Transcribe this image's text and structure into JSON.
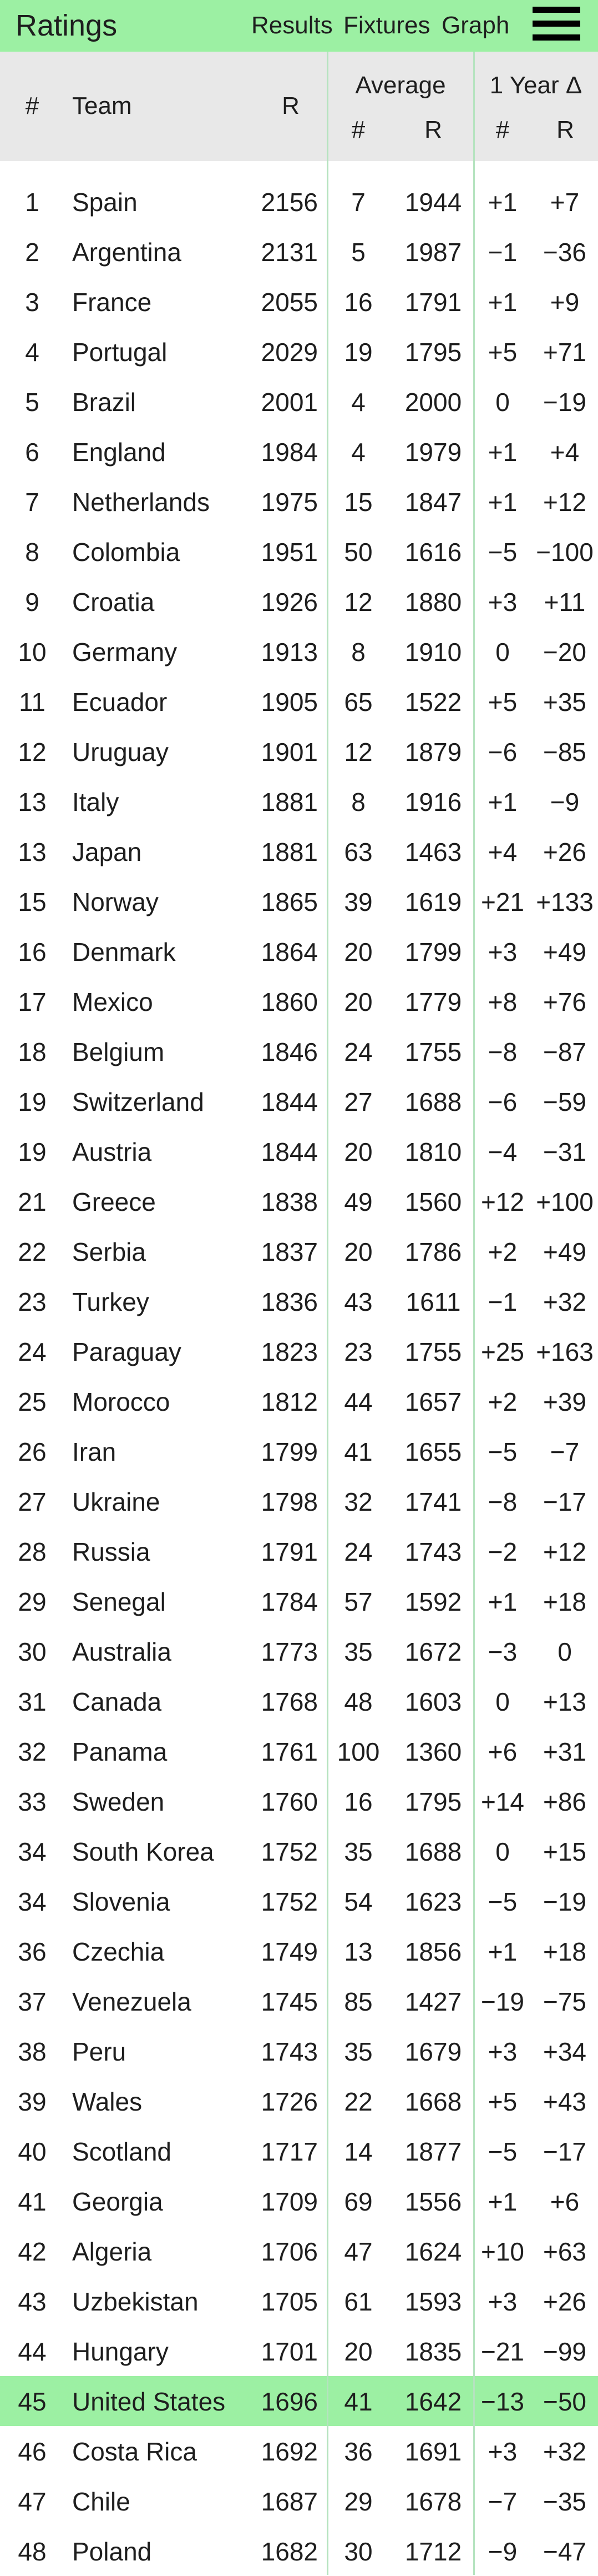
{
  "header": {
    "title": "Ratings",
    "nav": [
      "Results",
      "Fixtures",
      "Graph"
    ],
    "menu_icon": "hamburger-menu-icon",
    "background_color": "#9cf0a3"
  },
  "table_header": {
    "rank": "#",
    "team": "Team",
    "rating": "R",
    "average": "Average",
    "average_rank": "#",
    "average_rating": "R",
    "one_year": "1 Year Δ",
    "one_year_rank": "#",
    "one_year_rating": "R"
  },
  "highlight_color": "#9cf0a3",
  "rows": [
    {
      "rank": "1",
      "team": "Spain",
      "r": "2156",
      "avg_rank": "7",
      "avg_r": "1944",
      "d_rank": "+1",
      "d_r": "+7"
    },
    {
      "rank": "2",
      "team": "Argentina",
      "r": "2131",
      "avg_rank": "5",
      "avg_r": "1987",
      "d_rank": "−1",
      "d_r": "−36"
    },
    {
      "rank": "3",
      "team": "France",
      "r": "2055",
      "avg_rank": "16",
      "avg_r": "1791",
      "d_rank": "+1",
      "d_r": "+9"
    },
    {
      "rank": "4",
      "team": "Portugal",
      "r": "2029",
      "avg_rank": "19",
      "avg_r": "1795",
      "d_rank": "+5",
      "d_r": "+71"
    },
    {
      "rank": "5",
      "team": "Brazil",
      "r": "2001",
      "avg_rank": "4",
      "avg_r": "2000",
      "d_rank": "0",
      "d_r": "−19"
    },
    {
      "rank": "6",
      "team": "England",
      "r": "1984",
      "avg_rank": "4",
      "avg_r": "1979",
      "d_rank": "+1",
      "d_r": "+4"
    },
    {
      "rank": "7",
      "team": "Netherlands",
      "r": "1975",
      "avg_rank": "15",
      "avg_r": "1847",
      "d_rank": "+1",
      "d_r": "+12"
    },
    {
      "rank": "8",
      "team": "Colombia",
      "r": "1951",
      "avg_rank": "50",
      "avg_r": "1616",
      "d_rank": "−5",
      "d_r": "−100"
    },
    {
      "rank": "9",
      "team": "Croatia",
      "r": "1926",
      "avg_rank": "12",
      "avg_r": "1880",
      "d_rank": "+3",
      "d_r": "+11"
    },
    {
      "rank": "10",
      "team": "Germany",
      "r": "1913",
      "avg_rank": "8",
      "avg_r": "1910",
      "d_rank": "0",
      "d_r": "−20"
    },
    {
      "rank": "11",
      "team": "Ecuador",
      "r": "1905",
      "avg_rank": "65",
      "avg_r": "1522",
      "d_rank": "+5",
      "d_r": "+35"
    },
    {
      "rank": "12",
      "team": "Uruguay",
      "r": "1901",
      "avg_rank": "12",
      "avg_r": "1879",
      "d_rank": "−6",
      "d_r": "−85"
    },
    {
      "rank": "13",
      "team": "Italy",
      "r": "1881",
      "avg_rank": "8",
      "avg_r": "1916",
      "d_rank": "+1",
      "d_r": "−9"
    },
    {
      "rank": "13",
      "team": "Japan",
      "r": "1881",
      "avg_rank": "63",
      "avg_r": "1463",
      "d_rank": "+4",
      "d_r": "+26"
    },
    {
      "rank": "15",
      "team": "Norway",
      "r": "1865",
      "avg_rank": "39",
      "avg_r": "1619",
      "d_rank": "+21",
      "d_r": "+133"
    },
    {
      "rank": "16",
      "team": "Denmark",
      "r": "1864",
      "avg_rank": "20",
      "avg_r": "1799",
      "d_rank": "+3",
      "d_r": "+49"
    },
    {
      "rank": "17",
      "team": "Mexico",
      "r": "1860",
      "avg_rank": "20",
      "avg_r": "1779",
      "d_rank": "+8",
      "d_r": "+76"
    },
    {
      "rank": "18",
      "team": "Belgium",
      "r": "1846",
      "avg_rank": "24",
      "avg_r": "1755",
      "d_rank": "−8",
      "d_r": "−87"
    },
    {
      "rank": "19",
      "team": "Switzerland",
      "r": "1844",
      "avg_rank": "27",
      "avg_r": "1688",
      "d_rank": "−6",
      "d_r": "−59"
    },
    {
      "rank": "19",
      "team": "Austria",
      "r": "1844",
      "avg_rank": "20",
      "avg_r": "1810",
      "d_rank": "−4",
      "d_r": "−31"
    },
    {
      "rank": "21",
      "team": "Greece",
      "r": "1838",
      "avg_rank": "49",
      "avg_r": "1560",
      "d_rank": "+12",
      "d_r": "+100"
    },
    {
      "rank": "22",
      "team": "Serbia",
      "r": "1837",
      "avg_rank": "20",
      "avg_r": "1786",
      "d_rank": "+2",
      "d_r": "+49"
    },
    {
      "rank": "23",
      "team": "Turkey",
      "r": "1836",
      "avg_rank": "43",
      "avg_r": "1611",
      "d_rank": "−1",
      "d_r": "+32"
    },
    {
      "rank": "24",
      "team": "Paraguay",
      "r": "1823",
      "avg_rank": "23",
      "avg_r": "1755",
      "d_rank": "+25",
      "d_r": "+163"
    },
    {
      "rank": "25",
      "team": "Morocco",
      "r": "1812",
      "avg_rank": "44",
      "avg_r": "1657",
      "d_rank": "+2",
      "d_r": "+39"
    },
    {
      "rank": "26",
      "team": "Iran",
      "r": "1799",
      "avg_rank": "41",
      "avg_r": "1655",
      "d_rank": "−5",
      "d_r": "−7"
    },
    {
      "rank": "27",
      "team": "Ukraine",
      "r": "1798",
      "avg_rank": "32",
      "avg_r": "1741",
      "d_rank": "−8",
      "d_r": "−17"
    },
    {
      "rank": "28",
      "team": "Russia",
      "r": "1791",
      "avg_rank": "24",
      "avg_r": "1743",
      "d_rank": "−2",
      "d_r": "+12"
    },
    {
      "rank": "29",
      "team": "Senegal",
      "r": "1784",
      "avg_rank": "57",
      "avg_r": "1592",
      "d_rank": "+1",
      "d_r": "+18"
    },
    {
      "rank": "30",
      "team": "Australia",
      "r": "1773",
      "avg_rank": "35",
      "avg_r": "1672",
      "d_rank": "−3",
      "d_r": "0"
    },
    {
      "rank": "31",
      "team": "Canada",
      "r": "1768",
      "avg_rank": "48",
      "avg_r": "1603",
      "d_rank": "0",
      "d_r": "+13"
    },
    {
      "rank": "32",
      "team": "Panama",
      "r": "1761",
      "avg_rank": "100",
      "avg_r": "1360",
      "d_rank": "+6",
      "d_r": "+31"
    },
    {
      "rank": "33",
      "team": "Sweden",
      "r": "1760",
      "avg_rank": "16",
      "avg_r": "1795",
      "d_rank": "+14",
      "d_r": "+86"
    },
    {
      "rank": "34",
      "team": "South Korea",
      "r": "1752",
      "avg_rank": "35",
      "avg_r": "1688",
      "d_rank": "0",
      "d_r": "+15"
    },
    {
      "rank": "34",
      "team": "Slovenia",
      "r": "1752",
      "avg_rank": "54",
      "avg_r": "1623",
      "d_rank": "−5",
      "d_r": "−19"
    },
    {
      "rank": "36",
      "team": "Czechia",
      "r": "1749",
      "avg_rank": "13",
      "avg_r": "1856",
      "d_rank": "+1",
      "d_r": "+18"
    },
    {
      "rank": "37",
      "team": "Venezuela",
      "r": "1745",
      "avg_rank": "85",
      "avg_r": "1427",
      "d_rank": "−19",
      "d_r": "−75"
    },
    {
      "rank": "38",
      "team": "Peru",
      "r": "1743",
      "avg_rank": "35",
      "avg_r": "1679",
      "d_rank": "+3",
      "d_r": "+34"
    },
    {
      "rank": "39",
      "team": "Wales",
      "r": "1726",
      "avg_rank": "22",
      "avg_r": "1668",
      "d_rank": "+5",
      "d_r": "+43"
    },
    {
      "rank": "40",
      "team": "Scotland",
      "r": "1717",
      "avg_rank": "14",
      "avg_r": "1877",
      "d_rank": "−5",
      "d_r": "−17"
    },
    {
      "rank": "41",
      "team": "Georgia",
      "r": "1709",
      "avg_rank": "69",
      "avg_r": "1556",
      "d_rank": "+1",
      "d_r": "+6"
    },
    {
      "rank": "42",
      "team": "Algeria",
      "r": "1706",
      "avg_rank": "47",
      "avg_r": "1624",
      "d_rank": "+10",
      "d_r": "+63"
    },
    {
      "rank": "43",
      "team": "Uzbekistan",
      "r": "1705",
      "avg_rank": "61",
      "avg_r": "1593",
      "d_rank": "+3",
      "d_r": "+26"
    },
    {
      "rank": "44",
      "team": "Hungary",
      "r": "1701",
      "avg_rank": "20",
      "avg_r": "1835",
      "d_rank": "−21",
      "d_r": "−99"
    },
    {
      "rank": "45",
      "team": "United States",
      "r": "1696",
      "avg_rank": "41",
      "avg_r": "1642",
      "d_rank": "−13",
      "d_r": "−50",
      "highlighted": true
    },
    {
      "rank": "46",
      "team": "Costa Rica",
      "r": "1692",
      "avg_rank": "36",
      "avg_r": "1691",
      "d_rank": "+3",
      "d_r": "+32"
    },
    {
      "rank": "47",
      "team": "Chile",
      "r": "1687",
      "avg_rank": "29",
      "avg_r": "1678",
      "d_rank": "−7",
      "d_r": "−35"
    },
    {
      "rank": "48",
      "team": "Poland",
      "r": "1682",
      "avg_rank": "30",
      "avg_r": "1712",
      "d_rank": "−9",
      "d_r": "−47"
    }
  ]
}
